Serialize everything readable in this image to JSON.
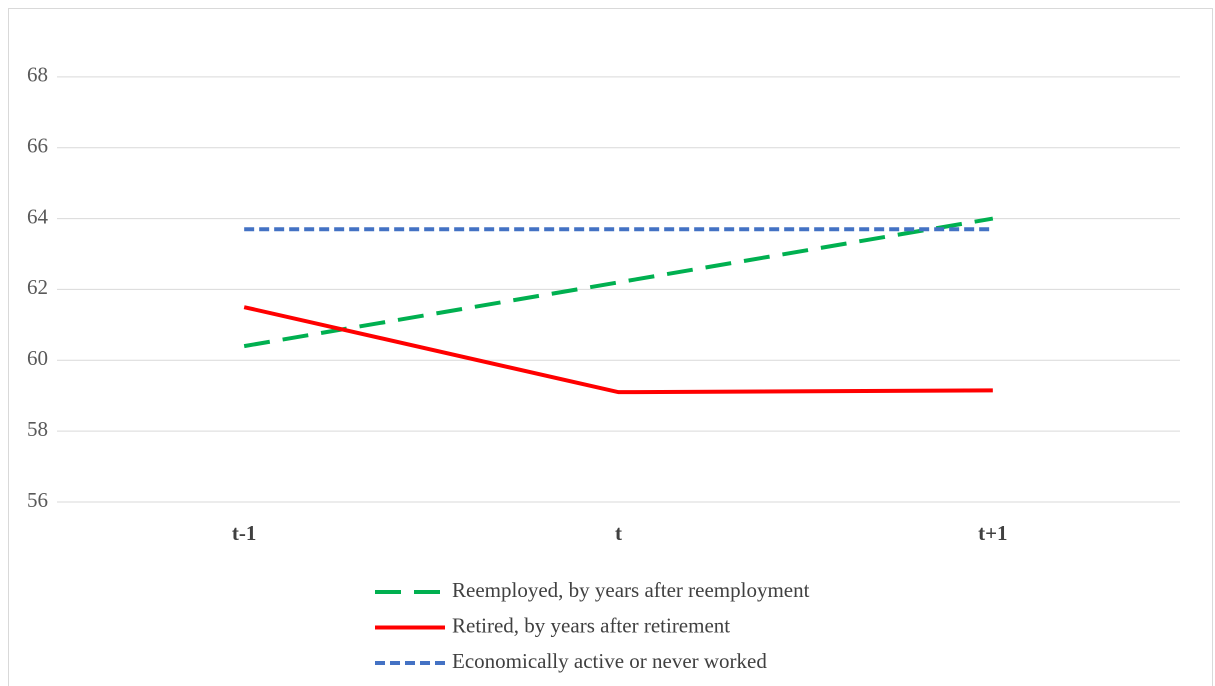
{
  "chart_data": {
    "type": "line",
    "categories": [
      "t-1",
      "t",
      "t+1"
    ],
    "series": [
      {
        "name": "Reemployed, by years after reemployment",
        "color": "#00b050",
        "dash": "26,13",
        "values": [
          60.4,
          62.2,
          64.0
        ]
      },
      {
        "name": "Retired, by years after retirement",
        "color": "#ff0000",
        "dash": "none",
        "values": [
          61.5,
          59.1,
          59.15
        ]
      },
      {
        "name": "Economically active or never worked",
        "color": "#4472c4",
        "dash": "10,5",
        "values": [
          63.7,
          63.7,
          63.7
        ]
      }
    ],
    "ylim": [
      56,
      70
    ],
    "yticks": [
      56,
      58,
      60,
      62,
      64,
      66,
      68
    ],
    "grid": true,
    "legend": "bottom"
  }
}
